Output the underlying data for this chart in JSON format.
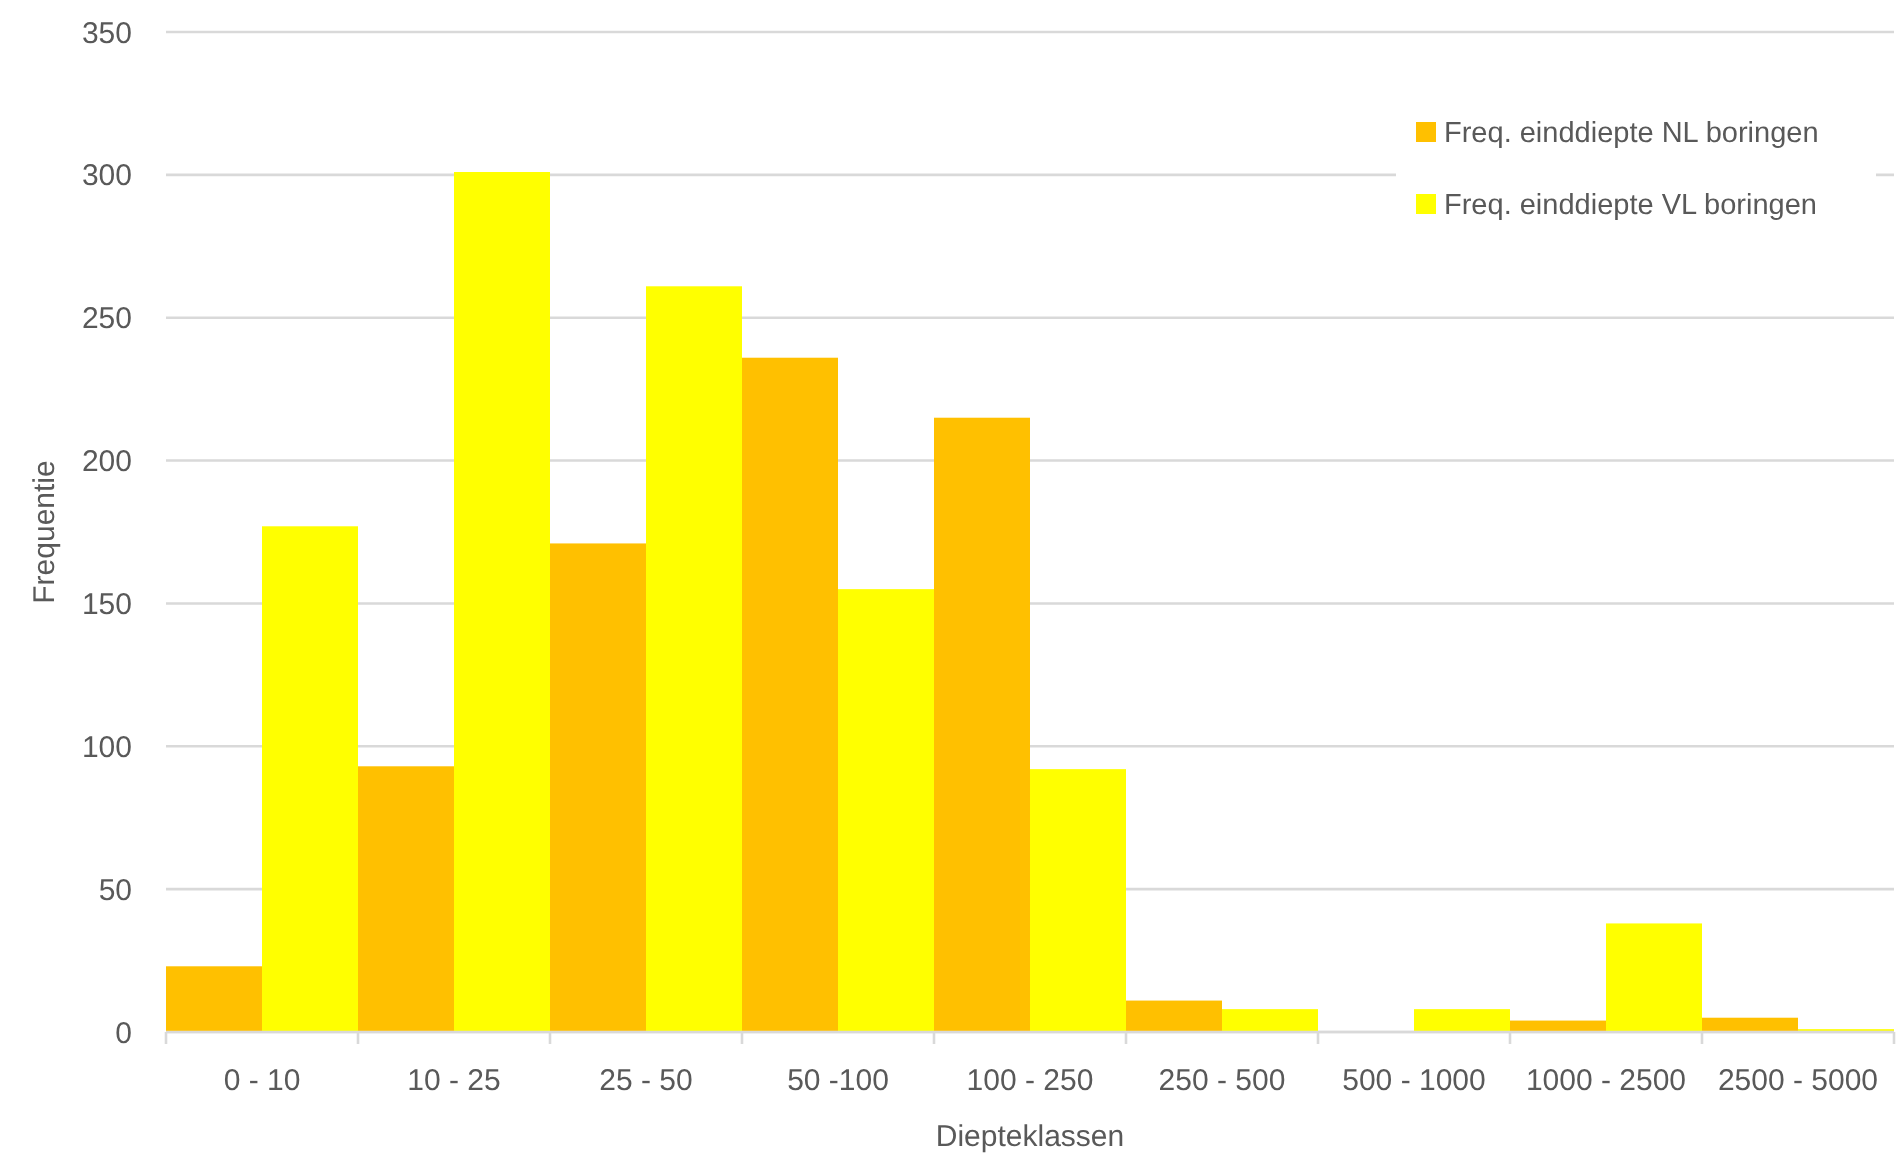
{
  "chart_data": {
    "type": "bar",
    "xlabel": "Diepteklassen",
    "ylabel": "Frequentie",
    "categories": [
      "0 - 10",
      "10 - 25",
      "25 - 50",
      "50 -100",
      "100 - 250",
      "250 - 500",
      "500 - 1000",
      "1000 - 2500",
      "2500 - 5000"
    ],
    "series": [
      {
        "name": "Freq. einddiepte NL boringen",
        "color": "#ffc000",
        "values": [
          23,
          93,
          171,
          236,
          215,
          11,
          0,
          4,
          5
        ]
      },
      {
        "name": "Freq. einddiepte VL boringen",
        "color": "#ffff00",
        "values": [
          177,
          301,
          261,
          155,
          92,
          8,
          8,
          38,
          1
        ]
      }
    ],
    "ylim": [
      0,
      350
    ],
    "yticks": [
      0,
      50,
      100,
      150,
      200,
      250,
      300,
      350
    ],
    "grid": "y",
    "legend": "top right"
  }
}
